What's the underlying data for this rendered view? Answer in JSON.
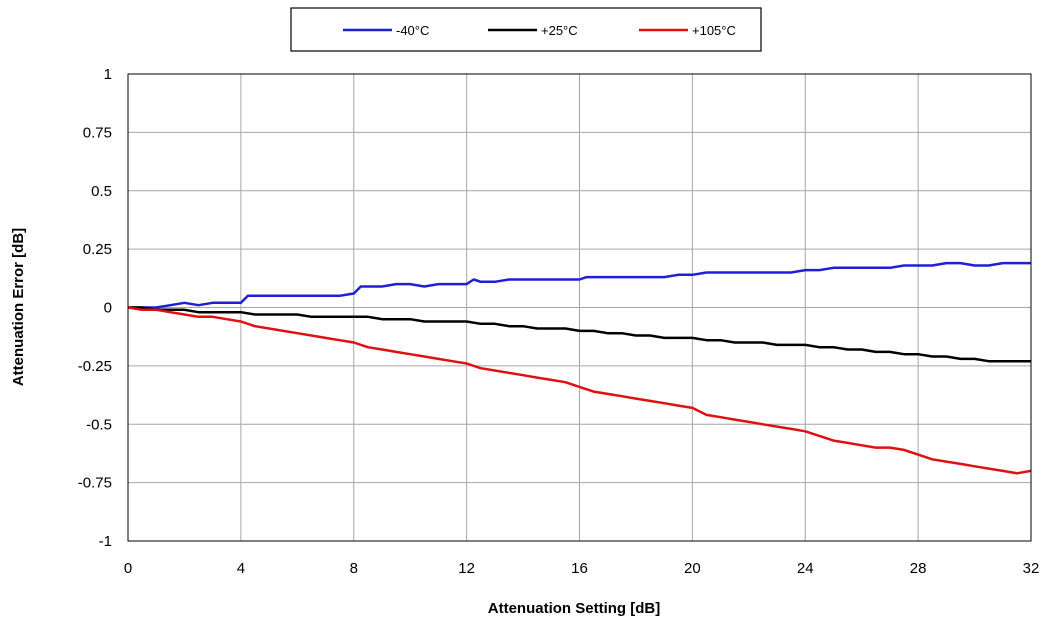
{
  "chart_data": {
    "type": "line",
    "title": "",
    "xlabel": "Attenuation Setting [dB]",
    "ylabel": "Attenuation Error [dB]",
    "xlim": [
      0,
      32
    ],
    "ylim": [
      -1,
      1
    ],
    "xticks": [
      0,
      4,
      8,
      12,
      16,
      20,
      24,
      28,
      32
    ],
    "yticks": [
      1,
      0.75,
      0.5,
      0.25,
      0,
      -0.25,
      -0.5,
      -0.75,
      -1
    ],
    "xtick_labels": [
      "0",
      "4",
      "8",
      "12",
      "16",
      "20",
      "24",
      "28",
      "32"
    ],
    "ytick_labels": [
      "1",
      "0.75",
      "0.5",
      "0.25",
      "0",
      "-0.25",
      "-0.5",
      "-0.75",
      "-1"
    ],
    "grid": true,
    "legend_position": "top",
    "series": [
      {
        "name": "-40°C",
        "color": "#1f1fd6",
        "x": [
          0,
          0.5,
          1,
          1.5,
          2,
          2.5,
          3,
          3.5,
          4,
          4.25,
          4.5,
          5,
          5.5,
          6,
          6.5,
          7,
          7.5,
          8,
          8.25,
          8.5,
          9,
          9.5,
          10,
          10.5,
          11,
          11.5,
          12,
          12.25,
          12.5,
          13,
          13.5,
          14,
          14.5,
          15,
          15.5,
          16,
          16.25,
          16.5,
          17,
          17.5,
          18,
          18.5,
          19,
          19.5,
          20,
          20.5,
          21,
          21.5,
          22,
          22.5,
          23,
          23.5,
          24,
          24.5,
          25,
          25.5,
          26,
          26.5,
          27,
          27.5,
          28,
          28.5,
          29,
          29.5,
          30,
          30.5,
          31,
          31.5,
          32
        ],
        "values": [
          0,
          0,
          0,
          0.01,
          0.02,
          0.01,
          0.02,
          0.02,
          0.02,
          0.05,
          0.05,
          0.05,
          0.05,
          0.05,
          0.05,
          0.05,
          0.05,
          0.06,
          0.09,
          0.09,
          0.09,
          0.1,
          0.1,
          0.09,
          0.1,
          0.1,
          0.1,
          0.12,
          0.11,
          0.11,
          0.12,
          0.12,
          0.12,
          0.12,
          0.12,
          0.12,
          0.13,
          0.13,
          0.13,
          0.13,
          0.13,
          0.13,
          0.13,
          0.14,
          0.14,
          0.15,
          0.15,
          0.15,
          0.15,
          0.15,
          0.15,
          0.15,
          0.16,
          0.16,
          0.17,
          0.17,
          0.17,
          0.17,
          0.17,
          0.18,
          0.18,
          0.18,
          0.19,
          0.19,
          0.18,
          0.18,
          0.19,
          0.19,
          0.19
        ]
      },
      {
        "name": "+25°C",
        "color": "#000000",
        "x": [
          0,
          0.5,
          1,
          1.5,
          2,
          2.5,
          3,
          3.5,
          4,
          4.5,
          5,
          5.5,
          6,
          6.5,
          7,
          7.5,
          8,
          8.5,
          9,
          9.5,
          10,
          10.5,
          11,
          11.5,
          12,
          12.5,
          13,
          13.5,
          14,
          14.5,
          15,
          15.5,
          16,
          16.5,
          17,
          17.5,
          18,
          18.5,
          19,
          19.5,
          20,
          20.5,
          21,
          21.5,
          22,
          22.5,
          23,
          23.5,
          24,
          24.5,
          25,
          25.5,
          26,
          26.5,
          27,
          27.5,
          28,
          28.5,
          29,
          29.5,
          30,
          30.5,
          31,
          31.5,
          32
        ],
        "values": [
          0,
          0,
          -0.01,
          -0.01,
          -0.01,
          -0.02,
          -0.02,
          -0.02,
          -0.02,
          -0.03,
          -0.03,
          -0.03,
          -0.03,
          -0.04,
          -0.04,
          -0.04,
          -0.04,
          -0.04,
          -0.05,
          -0.05,
          -0.05,
          -0.06,
          -0.06,
          -0.06,
          -0.06,
          -0.07,
          -0.07,
          -0.08,
          -0.08,
          -0.09,
          -0.09,
          -0.09,
          -0.1,
          -0.1,
          -0.11,
          -0.11,
          -0.12,
          -0.12,
          -0.13,
          -0.13,
          -0.13,
          -0.14,
          -0.14,
          -0.15,
          -0.15,
          -0.15,
          -0.16,
          -0.16,
          -0.16,
          -0.17,
          -0.17,
          -0.18,
          -0.18,
          -0.19,
          -0.19,
          -0.2,
          -0.2,
          -0.21,
          -0.21,
          -0.22,
          -0.22,
          -0.23,
          -0.23,
          -0.23,
          -0.23
        ]
      },
      {
        "name": "+105°C",
        "color": "#e01010",
        "x": [
          0,
          0.5,
          1,
          1.5,
          2,
          2.5,
          3,
          3.5,
          4,
          4.5,
          5,
          5.5,
          6,
          6.5,
          7,
          7.5,
          8,
          8.5,
          9,
          9.5,
          10,
          10.5,
          11,
          11.5,
          12,
          12.5,
          13,
          13.5,
          14,
          14.5,
          15,
          15.5,
          16,
          16.5,
          17,
          17.5,
          18,
          18.5,
          19,
          19.5,
          20,
          20.5,
          21,
          21.5,
          22,
          22.5,
          23,
          23.5,
          24,
          24.5,
          25,
          25.5,
          26,
          26.5,
          27,
          27.5,
          28,
          28.5,
          29,
          29.5,
          30,
          30.5,
          31,
          31.5,
          32
        ],
        "values": [
          0,
          -0.01,
          -0.01,
          -0.02,
          -0.03,
          -0.04,
          -0.04,
          -0.05,
          -0.06,
          -0.08,
          -0.09,
          -0.1,
          -0.11,
          -0.12,
          -0.13,
          -0.14,
          -0.15,
          -0.17,
          -0.18,
          -0.19,
          -0.2,
          -0.21,
          -0.22,
          -0.23,
          -0.24,
          -0.26,
          -0.27,
          -0.28,
          -0.29,
          -0.3,
          -0.31,
          -0.32,
          -0.34,
          -0.36,
          -0.37,
          -0.38,
          -0.39,
          -0.4,
          -0.41,
          -0.42,
          -0.43,
          -0.46,
          -0.47,
          -0.48,
          -0.49,
          -0.5,
          -0.51,
          -0.52,
          -0.53,
          -0.55,
          -0.57,
          -0.58,
          -0.59,
          -0.6,
          -0.6,
          -0.61,
          -0.63,
          -0.65,
          -0.66,
          -0.67,
          -0.68,
          -0.69,
          -0.7,
          -0.71,
          -0.7
        ]
      }
    ]
  }
}
